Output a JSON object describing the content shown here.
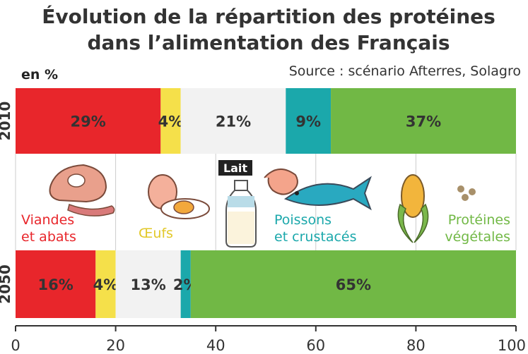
{
  "chart_data": {
    "type": "bar",
    "orientation": "horizontal",
    "stacked": true,
    "title_lines": [
      "Évolution de la répartition des protéines",
      "dans l’alimentation des Français"
    ],
    "source": "Source : scénario Afterres, Solagro",
    "unit_label": "en %",
    "categories": [
      "2010",
      "2050"
    ],
    "series": [
      {
        "name": "Viandes et abats",
        "name_lines": [
          "Viandes",
          "et abats"
        ],
        "color": "#e8262b",
        "values": [
          29,
          16
        ],
        "labels": [
          "29%",
          "16%"
        ]
      },
      {
        "name": "Œufs",
        "name_lines": [
          "Œufs"
        ],
        "color": "#f5e04a",
        "values": [
          4,
          4
        ],
        "labels": [
          "4%",
          "4%"
        ]
      },
      {
        "name": "Lait",
        "name_lines": [
          "Lait"
        ],
        "color": "#f2f2f2",
        "values": [
          21,
          13
        ],
        "labels": [
          "21%",
          "13%"
        ]
      },
      {
        "name": "Poissons et crustacés",
        "name_lines": [
          "Poissons",
          "et crustacés"
        ],
        "color": "#1ba8ab",
        "values": [
          9,
          2
        ],
        "labels": [
          "9%",
          "2%"
        ]
      },
      {
        "name": "Protéines végétales",
        "name_lines": [
          "Protéines",
          "végétales"
        ],
        "color": "#71b845",
        "values": [
          37,
          65
        ],
        "labels": [
          "37%",
          "65%"
        ]
      }
    ],
    "xlim": [
      0,
      100
    ],
    "xticks": [
      "0",
      "20",
      "40",
      "60",
      "80",
      "100"
    ],
    "grid": true
  }
}
